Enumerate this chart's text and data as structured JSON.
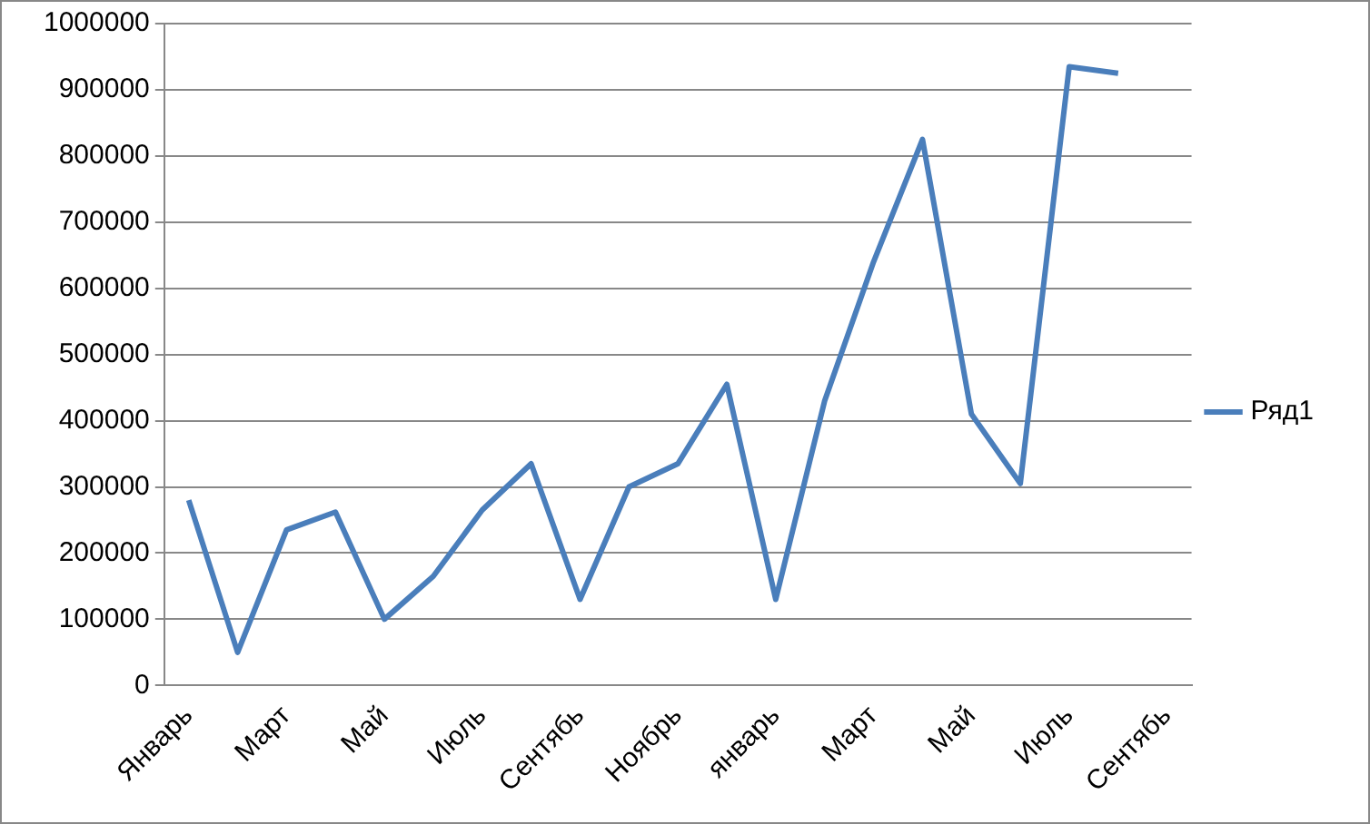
{
  "chart_data": {
    "type": "line",
    "categories": [
      "Январь",
      null,
      "Март",
      null,
      "Май",
      null,
      "Июль",
      null,
      "Сентябь",
      null,
      "Ноябрь",
      null,
      "январь",
      null,
      "Март",
      null,
      "Май",
      null,
      "Июль",
      null,
      "Сентябь"
    ],
    "series": [
      {
        "name": "Ряд1",
        "color": "#4a7ebb",
        "values": [
          280000,
          50000,
          235000,
          262000,
          100000,
          165000,
          265000,
          335000,
          130000,
          300000,
          335000,
          455000,
          130000,
          430000,
          640000,
          825000,
          410000,
          305000,
          935000,
          925000,
          null
        ]
      }
    ],
    "ylim": [
      0,
      1000000
    ],
    "yticks": [
      0,
      100000,
      200000,
      300000,
      400000,
      500000,
      600000,
      700000,
      800000,
      900000,
      1000000
    ],
    "grid": "y",
    "legend": "right",
    "marker": "none",
    "line_style": "solid"
  }
}
